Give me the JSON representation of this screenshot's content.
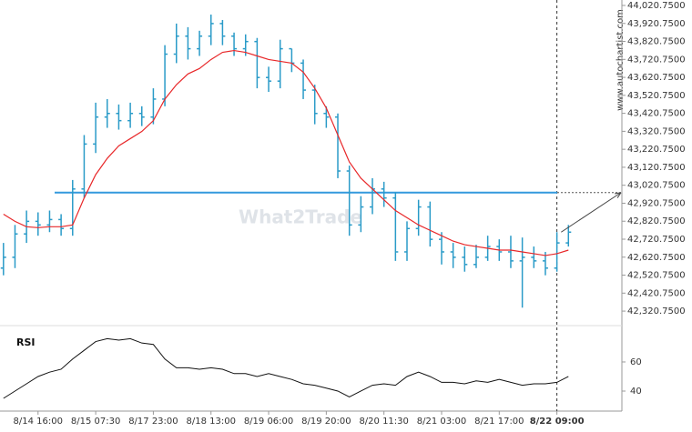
{
  "chart_data": {
    "type": "ohlc",
    "watermark": "What2Trade",
    "source": "www.autochartist.com",
    "xlim": [
      -0.3,
      53.4
    ],
    "xticks": [
      {
        "value": 3,
        "label": "8/14 16:00"
      },
      {
        "value": 8,
        "label": "8/15 07:30"
      },
      {
        "value": 13,
        "label": "8/17 23:00"
      },
      {
        "value": 18,
        "label": "8/18 13:00"
      },
      {
        "value": 23,
        "label": "8/19 06:00"
      },
      {
        "value": 28,
        "label": "8/19 20:00"
      },
      {
        "value": 33,
        "label": "8/20 11:30"
      },
      {
        "value": 38,
        "label": "8/21 03:00"
      },
      {
        "value": 43,
        "label": "8/21 17:00"
      },
      {
        "value": 48,
        "label": "8/22 09:00"
      }
    ],
    "ylim": [
      42290.75,
      44020.75
    ],
    "yticks": [
      {
        "value": 44020.75,
        "label": "44,020.7500"
      },
      {
        "value": 43920.75,
        "label": "43,920.7500"
      },
      {
        "value": 43820.75,
        "label": "43,820.7500"
      },
      {
        "value": 43720.75,
        "label": "43,720.7500"
      },
      {
        "value": 43620.75,
        "label": "43,620.7500"
      },
      {
        "value": 43520.75,
        "label": "43,520.7500"
      },
      {
        "value": 43420.75,
        "label": "43,420.7500"
      },
      {
        "value": 43320.75,
        "label": "43,320.7500"
      },
      {
        "value": 43220.75,
        "label": "43,220.7500"
      },
      {
        "value": 43120.75,
        "label": "43,120.7500"
      },
      {
        "value": 43020.75,
        "label": "43,020.7500"
      },
      {
        "value": 42920.75,
        "label": "42,920.7500"
      },
      {
        "value": 42820.75,
        "label": "42,820.7500"
      },
      {
        "value": 42720.75,
        "label": "42,720.7500"
      },
      {
        "value": 42620.75,
        "label": "42,620.7500"
      },
      {
        "value": 42520.75,
        "label": "42,520.7500"
      },
      {
        "value": 42420.75,
        "label": "42,420.7500"
      },
      {
        "value": 42320.75,
        "label": "42,320.7500"
      }
    ],
    "color": "#2a9bc8",
    "open": [
      42560,
      42620,
      42750,
      42820,
      42800,
      42830,
      42780,
      43000,
      43250,
      43400,
      43420,
      43380,
      43420,
      43400,
      43500,
      43750,
      43850,
      43780,
      43850,
      43920,
      43850,
      43780,
      43820,
      43620,
      43600,
      43780,
      43700,
      43550,
      43420,
      43400,
      43100,
      42800,
      42900,
      43000,
      42950,
      42650,
      42780,
      42900,
      42720,
      42650,
      42620,
      42580,
      42620,
      42680,
      42650,
      42600,
      42620,
      42600,
      42560,
      42700
    ],
    "high": [
      42700,
      42800,
      42880,
      42870,
      42880,
      42860,
      43050,
      43300,
      43480,
      43500,
      43470,
      43480,
      43460,
      43560,
      43800,
      43920,
      43900,
      43880,
      43970,
      43940,
      43870,
      43860,
      43840,
      43680,
      43830,
      43780,
      43720,
      43580,
      43460,
      43420,
      43130,
      42960,
      43060,
      43040,
      42980,
      42820,
      42940,
      42930,
      42760,
      42700,
      42680,
      42690,
      42740,
      42720,
      42740,
      42730,
      42680,
      42650,
      42760,
      42800
    ],
    "low": [
      42520,
      42560,
      42700,
      42740,
      42760,
      42740,
      42740,
      42950,
      43200,
      43340,
      43330,
      43340,
      43350,
      43360,
      43460,
      43700,
      43720,
      43740,
      43800,
      43800,
      43740,
      43740,
      43560,
      43540,
      43560,
      43650,
      43500,
      43360,
      43340,
      43060,
      42740,
      42760,
      42860,
      42900,
      42600,
      42600,
      42740,
      42680,
      42580,
      42560,
      42540,
      42560,
      42600,
      42600,
      42560,
      42340,
      42560,
      42520,
      42540,
      42680
    ],
    "close": [
      42620,
      42750,
      42820,
      42800,
      42830,
      42780,
      43000,
      43250,
      43400,
      43420,
      43380,
      43420,
      43400,
      43500,
      43750,
      43850,
      43780,
      43850,
      43920,
      43850,
      43780,
      43820,
      43620,
      43600,
      43780,
      43700,
      43550,
      43420,
      43400,
      43100,
      42800,
      42900,
      43000,
      42950,
      42650,
      42780,
      42900,
      42720,
      42650,
      42620,
      42580,
      42620,
      42680,
      42650,
      42600,
      42620,
      42600,
      42560,
      42700,
      42760
    ],
    "ma": {
      "color": "#e8282a",
      "values": [
        42860,
        42820,
        42790,
        42785,
        42790,
        42790,
        42800,
        42950,
        43080,
        43170,
        43240,
        43280,
        43320,
        43380,
        43500,
        43580,
        43640,
        43670,
        43720,
        43760,
        43770,
        43760,
        43740,
        43720,
        43710,
        43700,
        43650,
        43560,
        43450,
        43300,
        43150,
        43060,
        43000,
        42940,
        42880,
        42840,
        42800,
        42770,
        42740,
        42710,
        42690,
        42680,
        42670,
        42660,
        42660,
        42650,
        42640,
        42630,
        42640,
        42660
      ]
    },
    "level": {
      "value": 42980,
      "color": "#3399dd"
    },
    "rsi": {
      "name": "RSI",
      "color": "#111111",
      "ylim": [
        27.5,
        80.6
      ],
      "yticks": [
        40,
        60
      ],
      "values": [
        35,
        40,
        45,
        50,
        53,
        55,
        62,
        68,
        74,
        76,
        75,
        76,
        73,
        72,
        62,
        56,
        56,
        55,
        56,
        55,
        52,
        52,
        50,
        52,
        50,
        48,
        45,
        44,
        42,
        40,
        36,
        40,
        44,
        45,
        44,
        50,
        53,
        50,
        46,
        46,
        45,
        47,
        46,
        48,
        46,
        44,
        45,
        45,
        46,
        50
      ]
    }
  }
}
